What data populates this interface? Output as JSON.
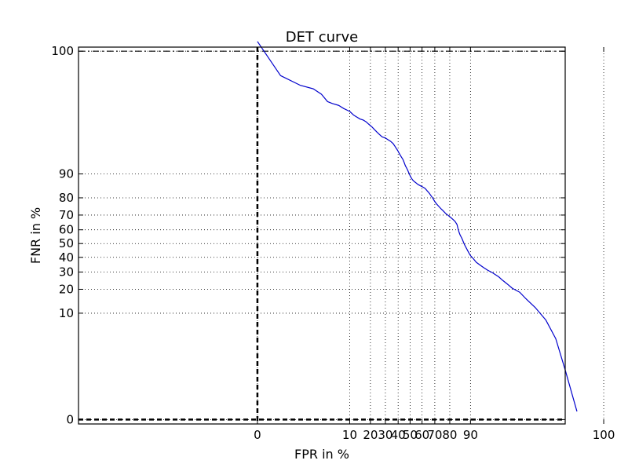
{
  "chart_data": {
    "type": "line",
    "title": "DET curve",
    "xlabel": "FPR in %",
    "ylabel": "FNR in %",
    "xticks": [
      0,
      10,
      20,
      30,
      40,
      50,
      60,
      70,
      80,
      90,
      100
    ],
    "yticks": [
      0,
      10,
      20,
      30,
      40,
      50,
      60,
      70,
      80,
      90,
      100
    ],
    "xlim": [
      -0.1,
      100
    ],
    "ylim": [
      -0.1,
      100
    ],
    "scale": "probit (normal deviate)",
    "grid": true,
    "reference_lines": [
      {
        "axis": "x",
        "value": 0,
        "style": "dashed-black-thick"
      },
      {
        "axis": "y",
        "value": 0,
        "style": "dashed-black-thick"
      },
      {
        "axis": "y",
        "value": 100,
        "style": "dashdot-black"
      }
    ],
    "colors": {
      "series": "#0000cc",
      "grid": "#000000",
      "reference": "#000000"
    },
    "series": [
      {
        "x": [
          0.0,
          0.3,
          1.0,
          2.0,
          3.0,
          4.0,
          5.0,
          6.5,
          8.0,
          10.0,
          11.5,
          13.0,
          14.5,
          16.0,
          17.5,
          19.0,
          21.0,
          22.5,
          24.0,
          25.5,
          27.0,
          28.0,
          30.0,
          32.0,
          34.0,
          36.0,
          37.5,
          38.5,
          39.5,
          41.0,
          42.5,
          44.0,
          45.0,
          46.0,
          47.5,
          49.0,
          50.5,
          52.0,
          53.5,
          55.0,
          56.5,
          58.0,
          59.5,
          61.0,
          62.5,
          64.0,
          65.5,
          67.0,
          68.5,
          70.0,
          71.5,
          73.0,
          74.5,
          76.0,
          77.5,
          79.0,
          80.5,
          82.0,
          83.0,
          84.0,
          84.5,
          85.0,
          85.5,
          86.0,
          86.5,
          87.0,
          87.5,
          88.0,
          88.5,
          89.0,
          89.5,
          90.0,
          90.8,
          91.5,
          92.0,
          93.0,
          94.0,
          95.0,
          96.0,
          97.0,
          97.5,
          98.0,
          98.5,
          99.0,
          99.3,
          99.6,
          99.8,
          99.9,
          99.95,
          99.98
        ],
        "y": [
          99.99,
          99.9,
          99.82,
          99.78,
          99.7,
          99.55,
          99.5,
          99.45,
          99.35,
          99.25,
          99.1,
          99.0,
          98.9,
          98.85,
          98.75,
          98.6,
          98.4,
          98.2,
          98.0,
          97.8,
          97.6,
          97.5,
          97.4,
          97.2,
          97.0,
          96.7,
          96.3,
          96.0,
          95.7,
          95.1,
          94.5,
          93.9,
          93.2,
          92.4,
          91.5,
          90.3,
          89.0,
          88.0,
          87.3,
          86.8,
          86.2,
          85.8,
          85.4,
          85.0,
          84.5,
          83.5,
          82.5,
          81.2,
          79.8,
          78.0,
          76.5,
          75.2,
          73.8,
          72.5,
          71.0,
          69.8,
          68.5,
          67.0,
          65.8,
          63.8,
          61.0,
          58.5,
          56.5,
          55.0,
          53.5,
          51.5,
          49.5,
          47.8,
          46.2,
          44.5,
          42.8,
          41.2,
          39.5,
          37.8,
          36.5,
          34.8,
          33.0,
          31.2,
          29.5,
          27.0,
          25.0,
          23.0,
          20.5,
          18.5,
          15.5,
          12.0,
          8.0,
          4.0,
          1.0,
          0.1
        ]
      }
    ]
  }
}
